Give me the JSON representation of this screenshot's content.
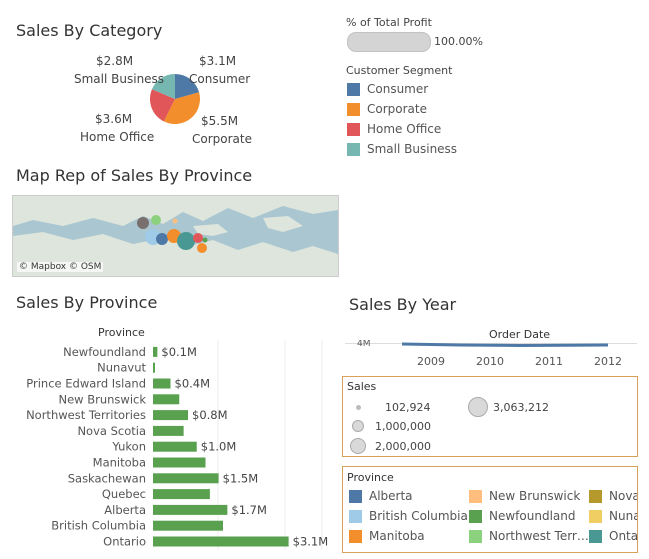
{
  "sales_by_category": {
    "title": "Sales By Category",
    "labels": [
      {
        "value": "$2.8M",
        "name": "Small Business"
      },
      {
        "value": "$3.1M",
        "name": "Consumer"
      },
      {
        "value": "$3.6M",
        "name": "Home Office"
      },
      {
        "value": "$5.5M",
        "name": "Corporate"
      }
    ]
  },
  "profit": {
    "title": "% of Total Profit",
    "value_label": "100.00%",
    "value": 1.0
  },
  "segment_legend": {
    "title": "Customer Segment",
    "items": [
      {
        "label": "Consumer",
        "color": "#4e79a7"
      },
      {
        "label": "Corporate",
        "color": "#f28e2b"
      },
      {
        "label": "Home Office",
        "color": "#e15759"
      },
      {
        "label": "Small Business",
        "color": "#76b7b2"
      }
    ]
  },
  "map": {
    "title": "Map Rep of Sales By Province",
    "attribution": "© Mapbox © OSM"
  },
  "sales_by_province": {
    "title": "Sales By Province",
    "header": "Province"
  },
  "sales_by_year": {
    "title": "Sales By Year",
    "header": "Order Date",
    "axis_label": "4M",
    "years": [
      "2009",
      "2010",
      "2011",
      "2012"
    ]
  },
  "sales_legend": {
    "title": "Sales",
    "items": [
      "102,924",
      "3,063,212",
      "1,000,000",
      "2,000,000"
    ]
  },
  "province_legend": {
    "title": "Province",
    "items": [
      {
        "label": "Alberta",
        "color": "#4e79a7"
      },
      {
        "label": "New Brunswick",
        "color": "#ffbe7d"
      },
      {
        "label": "Nova",
        "color": "#b6992d"
      },
      {
        "label": "British Columbia",
        "color": "#a0cbe8"
      },
      {
        "label": "Newfoundland",
        "color": "#59a14f"
      },
      {
        "label": "Nuna",
        "color": "#f1ce63"
      },
      {
        "label": "Manitoba",
        "color": "#f28e2b"
      },
      {
        "label": "Northwest Terr…",
        "color": "#8cd17d"
      },
      {
        "label": "Onta",
        "color": "#499894"
      }
    ]
  },
  "chart_data": [
    {
      "type": "pie",
      "title": "Sales By Category",
      "categories": [
        "Consumer",
        "Corporate",
        "Home Office",
        "Small Business"
      ],
      "values": [
        3.1,
        5.5,
        3.6,
        2.8
      ],
      "unit": "$M",
      "colors": [
        "#4e79a7",
        "#f28e2b",
        "#e15759",
        "#76b7b2"
      ]
    },
    {
      "type": "bar",
      "title": "Sales By Province",
      "orientation": "horizontal",
      "categories": [
        "Newfoundland",
        "Nunavut",
        "Prince Edward Island",
        "New Brunswick",
        "Northwest Territories",
        "Nova Scotia",
        "Yukon",
        "Manitoba",
        "Saskachewan",
        "Quebec",
        "Alberta",
        "British Columbia",
        "Ontario"
      ],
      "values": [
        0.1,
        0.03,
        0.4,
        0.6,
        0.8,
        0.7,
        1.0,
        1.2,
        1.5,
        1.3,
        1.7,
        1.6,
        3.1
      ],
      "data_labels": [
        "$0.1M",
        "",
        "$0.4M",
        "",
        "$0.8M",
        "",
        "$1.0M",
        "",
        "$1.5M",
        "",
        "$1.7M",
        "",
        "$3.1M"
      ],
      "color": "#59a14f",
      "xlim": [
        0,
        3.2
      ]
    },
    {
      "type": "line",
      "title": "Sales By Year",
      "x": [
        "2009",
        "2010",
        "2011",
        "2012"
      ],
      "ylabel_tick": "4M",
      "color": "#4e79a7"
    }
  ]
}
